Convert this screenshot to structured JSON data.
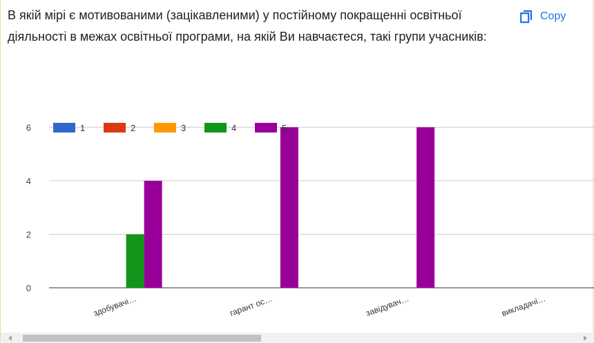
{
  "question": {
    "title": "В якій мірі є мотивованими (зацікавленими) у постійному покращенні освітньої діяльності в межах освітньої програми, на якій Ви навчаєтеся, такі групи учасників:"
  },
  "copy_button": {
    "label": "Copy",
    "icon": "copy-icon"
  },
  "colors": {
    "series_1": "#3366cc",
    "series_2": "#dc3912",
    "series_3": "#ff9900",
    "series_4": "#109618",
    "series_5": "#990099",
    "accent": "#1a73e8"
  },
  "chart_data": {
    "type": "bar",
    "categories": [
      "здобувачі…",
      "гарант ос…",
      "завідувач…",
      "викладачі…"
    ],
    "series": [
      {
        "name": "1",
        "values": [
          0,
          0,
          0,
          0
        ]
      },
      {
        "name": "2",
        "values": [
          0,
          0,
          0,
          0
        ]
      },
      {
        "name": "3",
        "values": [
          0,
          0,
          0,
          0
        ]
      },
      {
        "name": "4",
        "values": [
          2,
          0,
          0,
          0
        ]
      },
      {
        "name": "5",
        "values": [
          4,
          6,
          6,
          0
        ]
      }
    ],
    "yticks": [
      0,
      2,
      4,
      6
    ],
    "ylim": [
      0,
      6.5
    ],
    "grid": true,
    "legend_position": "top-left"
  }
}
